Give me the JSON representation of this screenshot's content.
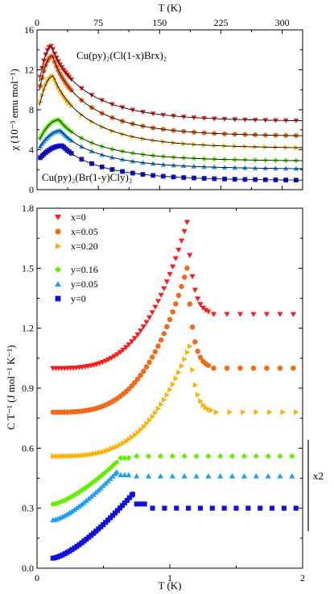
{
  "chart_data": [
    {
      "type": "scatter",
      "xlabel": "T (K)",
      "ylabel": "χ (10⁻³ emu mol⁻¹)",
      "xlim": [
        0,
        325
      ],
      "ylim": [
        0,
        16
      ],
      "x_ticks": [
        0,
        75,
        150,
        225,
        300
      ],
      "y_ticks": [
        0,
        4,
        8,
        12,
        16
      ],
      "grid": false,
      "fit_lines": true,
      "annotations": [
        "Cu(py)₂(Cl(1-x)Brx)₂",
        "Cu(py)₂(Br(1-y)Cly)₂"
      ],
      "series": [
        {
          "label": "x=0",
          "color": "#ff1a1a",
          "marker": "triangle-down",
          "peak": 14.4,
          "tmax": 18,
          "high": 6.9
        },
        {
          "label": "x=0.05",
          "color": "#f26a18",
          "marker": "circle",
          "peak": 13.4,
          "tmax": 19,
          "high": 5.4
        },
        {
          "label": "x=0.20",
          "color": "#ffb000",
          "marker": "triangle-right",
          "peak": 11.4,
          "tmax": 20,
          "high": 4.2
        },
        {
          "label": "y=0.16",
          "color": "#66ee00",
          "marker": "diamond",
          "peak": 7.0,
          "tmax": 27,
          "high": 2.9
        },
        {
          "label": "y=0.05",
          "color": "#1a9fff",
          "marker": "triangle-up",
          "peak": 5.9,
          "tmax": 29,
          "high": 2.1
        },
        {
          "label": "y=0",
          "color": "#1010e0",
          "marker": "square",
          "peak": 4.4,
          "tmax": 31,
          "high": 0.95
        }
      ]
    },
    {
      "type": "scatter",
      "xlabel": "T (K)",
      "ylabel": "C T⁻¹ (J mol⁻¹ K⁻¹)",
      "xlim": [
        0,
        2
      ],
      "ylim": [
        0,
        1.8
      ],
      "x_ticks": [
        0,
        1,
        2
      ],
      "y_ticks": [
        0.0,
        0.3,
        0.6,
        0.9,
        1.2,
        1.5,
        1.8
      ],
      "grid": false,
      "legend_position": "top-left",
      "scale_bar_label": "x2",
      "series": [
        {
          "label": "x=0",
          "color": "#ff1a1a",
          "marker": "triangle-down",
          "tc": 1.13,
          "peak": 1.73,
          "low": 1.0,
          "high": 1.27
        },
        {
          "label": "x=0.05",
          "color": "#f26a18",
          "marker": "circle",
          "tc": 1.13,
          "peak": 1.5,
          "low": 0.78,
          "high": 1.0
        },
        {
          "label": "x=0.20",
          "color": "#ffb000",
          "marker": "triangle-right",
          "tc": 1.15,
          "peak": 1.11,
          "low": 0.56,
          "high": 0.78
        },
        {
          "label": "y=0.16",
          "color": "#66ee00",
          "marker": "diamond",
          "tc": 0.6,
          "peak": 0.53,
          "low": 0.32,
          "high": 0.56
        },
        {
          "label": "y=0.05",
          "color": "#1a9fff",
          "marker": "triangle-up",
          "tc": 0.6,
          "peak": 0.48,
          "low": 0.24,
          "high": 0.46
        },
        {
          "label": "y=0",
          "color": "#1010e0",
          "marker": "square",
          "tc": 0.72,
          "peak": 0.37,
          "low": 0.05,
          "high": 0.3
        }
      ]
    }
  ]
}
